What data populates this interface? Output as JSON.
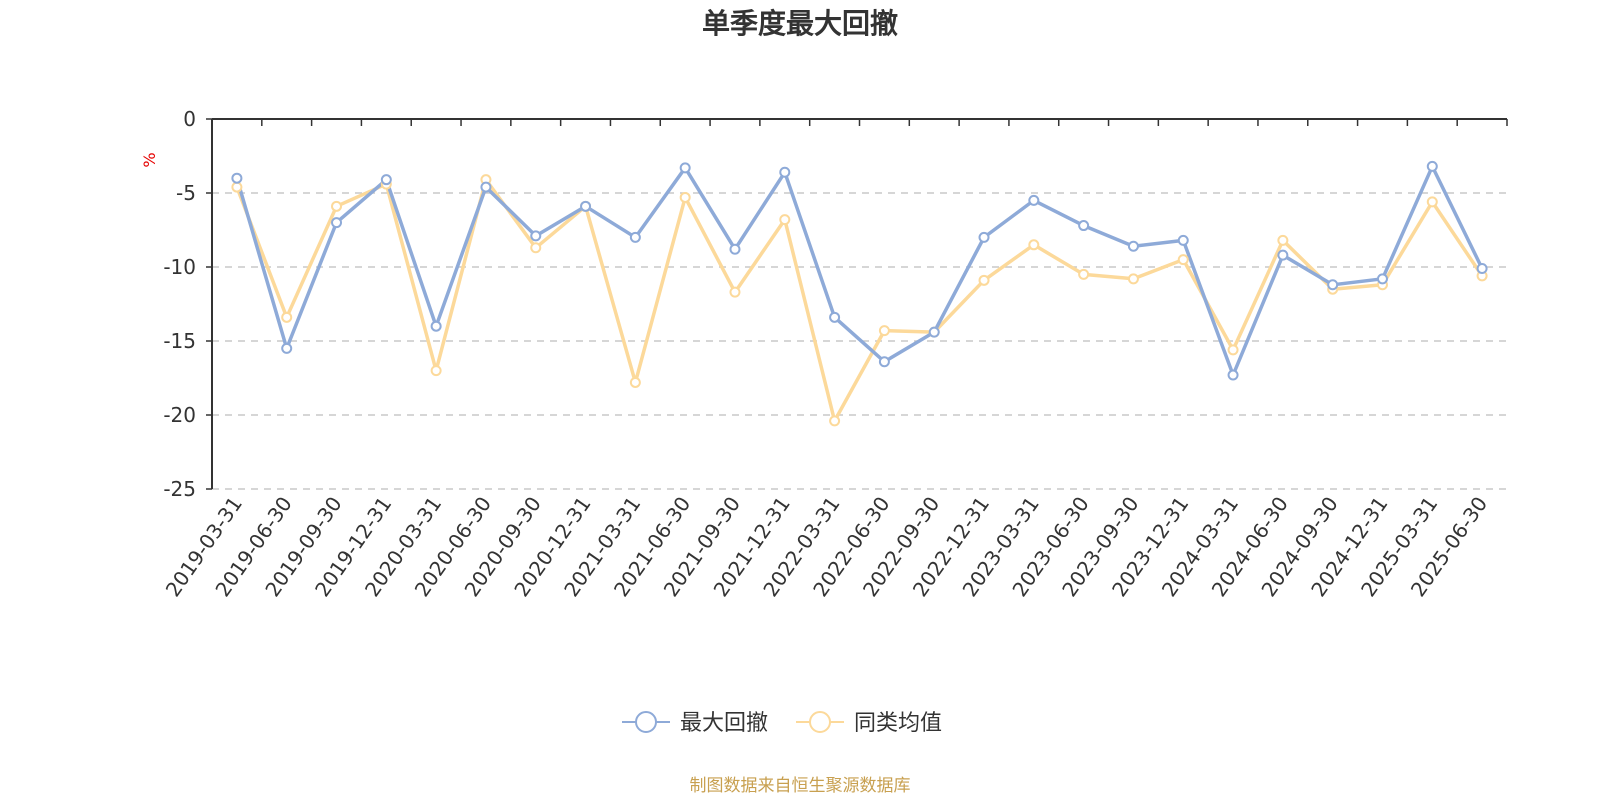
{
  "colors": {
    "series1": "#8eaad8",
    "series2": "#fcd99a",
    "grid": "#c8c8c8",
    "axis": "#333333",
    "unit": "#e60000",
    "source": "#c8a050"
  },
  "chart_data": {
    "type": "line",
    "title": "单季度最大回撤",
    "ylabel": "%",
    "ylim": [
      -25,
      0
    ],
    "yticks": [
      0,
      -5,
      -10,
      -15,
      -20,
      -25
    ],
    "grid": true,
    "legend_position": "bottom-center",
    "categories": [
      "2019-03-31",
      "2019-06-30",
      "2019-09-30",
      "2019-12-31",
      "2020-03-31",
      "2020-06-30",
      "2020-09-30",
      "2020-12-31",
      "2021-03-31",
      "2021-06-30",
      "2021-09-30",
      "2021-12-31",
      "2022-03-31",
      "2022-06-30",
      "2022-09-30",
      "2022-12-31",
      "2023-03-31",
      "2023-06-30",
      "2023-09-30",
      "2023-12-31",
      "2024-03-31",
      "2024-06-30",
      "2024-09-30",
      "2024-12-31",
      "2025-03-31",
      "2025-06-30"
    ],
    "series": [
      {
        "name": "最大回撤",
        "color": "#8eaad8",
        "values": [
          -4.0,
          -15.5,
          -7.0,
          -4.1,
          -14.0,
          -4.6,
          -7.9,
          -5.9,
          -8.0,
          -3.3,
          -8.8,
          -3.6,
          -13.4,
          -16.4,
          -14.4,
          -8.0,
          -5.5,
          -7.2,
          -8.6,
          -8.2,
          -17.3,
          -9.2,
          -11.2,
          -10.8,
          -3.2,
          -10.1
        ]
      },
      {
        "name": "同类均值",
        "color": "#fcd99a",
        "values": [
          -4.6,
          -13.4,
          -5.9,
          -4.4,
          -17.0,
          -4.1,
          -8.7,
          -5.9,
          -17.8,
          -5.3,
          -11.7,
          -6.8,
          -20.4,
          -14.3,
          -14.4,
          -10.9,
          -8.5,
          -10.5,
          -10.8,
          -9.5,
          -15.6,
          -8.2,
          -11.5,
          -11.2,
          -5.6,
          -10.6
        ]
      }
    ],
    "source_note": "制图数据来自恒生聚源数据库"
  }
}
